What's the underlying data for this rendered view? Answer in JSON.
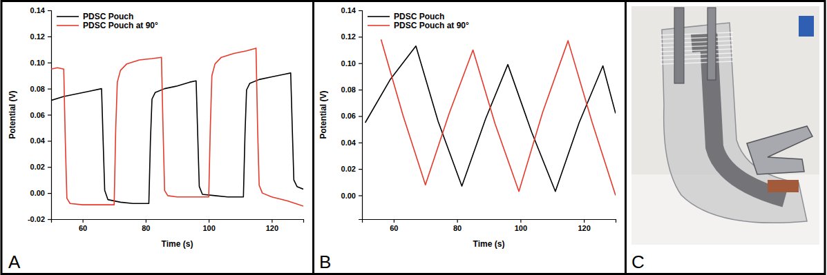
{
  "chart_data": [
    {
      "type": "line",
      "panel_label": "A",
      "x_label": "Time (s)",
      "y_label": "Potential (V)",
      "xlim": [
        50,
        130
      ],
      "xticks": [
        60,
        80,
        100,
        120
      ],
      "ylim": [
        -0.02,
        0.14
      ],
      "yticks": [
        -0.02,
        {
          "value": 0,
          "label": "0.00"
        },
        0.02,
        0.04,
        0.06,
        0.08,
        {
          "value": 0.1,
          "label": "0.10"
        },
        0.12,
        0.14
      ],
      "grid": false,
      "legend": "upper left",
      "series": [
        {
          "name": "PDSC Pouch",
          "color": "#000000",
          "x": [
            50,
            54,
            58,
            62,
            66,
            66.5,
            67,
            68,
            72,
            76,
            80,
            81,
            81.5,
            82,
            83,
            86,
            90,
            94,
            96,
            96.5,
            97,
            98,
            102,
            106,
            110,
            111,
            111.5,
            112,
            113,
            116,
            120,
            124,
            126,
            126.5,
            127,
            128,
            130
          ],
          "values": [
            0.071,
            0.074,
            0.076,
            0.078,
            0.08,
            0.04,
            0.002,
            -0.005,
            -0.007,
            -0.008,
            -0.008,
            -0.008,
            0.04,
            0.072,
            0.077,
            0.08,
            0.082,
            0.085,
            0.086,
            0.045,
            0.005,
            -0.001,
            -0.002,
            -0.003,
            -0.003,
            -0.003,
            0.045,
            0.079,
            0.084,
            0.087,
            0.089,
            0.091,
            0.092,
            0.05,
            0.01,
            0.005,
            0.003
          ]
        },
        {
          "name": "PDSC Pouch at 90°",
          "color": "#e8382a",
          "x": [
            50,
            52,
            54,
            54.5,
            55,
            56,
            60,
            65,
            70,
            70.5,
            71,
            72,
            74,
            78,
            82,
            85,
            85.5,
            86,
            87,
            90,
            95,
            100,
            100.5,
            101,
            102,
            104,
            108,
            112,
            115,
            115.5,
            116,
            117,
            120,
            125,
            130
          ],
          "values": [
            0.095,
            0.096,
            0.095,
            0.04,
            -0.004,
            -0.008,
            -0.009,
            -0.009,
            -0.009,
            0.05,
            0.085,
            0.094,
            0.099,
            0.102,
            0.103,
            0.104,
            0.05,
            0.002,
            -0.002,
            -0.003,
            -0.003,
            -0.003,
            0.05,
            0.09,
            0.099,
            0.104,
            0.107,
            0.109,
            0.111,
            0.05,
            0.006,
            0,
            -0.003,
            -0.006,
            -0.01
          ]
        }
      ]
    },
    {
      "type": "line",
      "panel_label": "B",
      "x_label": "Time (s)",
      "y_label": "Potential (V)",
      "xlim": [
        50,
        130
      ],
      "xticks": [
        60,
        80,
        100,
        120
      ],
      "ylim": [
        -0.018,
        0.14
      ],
      "yticks": [
        {
          "value": 0,
          "label": "0.00"
        },
        0.02,
        0.04,
        0.06,
        0.08,
        {
          "value": 0.1,
          "label": "0.10"
        },
        0.12,
        0.14
      ],
      "grid": false,
      "legend": "upper left",
      "series": [
        {
          "name": "PDSC Pouch",
          "color": "#000000",
          "x": [
            51,
            59,
            67,
            74,
            81.5,
            89,
            96,
            103.5,
            111,
            118.5,
            126,
            130
          ],
          "values": [
            0.055,
            0.088,
            0.113,
            0.056,
            0.007,
            0.058,
            0.099,
            0.048,
            0.003,
            0.055,
            0.098,
            0.062
          ]
        },
        {
          "name": "PDSC Pouch at 90°",
          "color": "#e8382a",
          "x": [
            56,
            63,
            70,
            77.5,
            85,
            92,
            99.5,
            107,
            115,
            122.5,
            130
          ],
          "values": [
            0.118,
            0.06,
            0.008,
            0.062,
            0.11,
            0.054,
            0.003,
            0.063,
            0.117,
            0.056,
            0
          ]
        }
      ]
    }
  ],
  "photo_panel": {
    "panel_label": "C"
  }
}
